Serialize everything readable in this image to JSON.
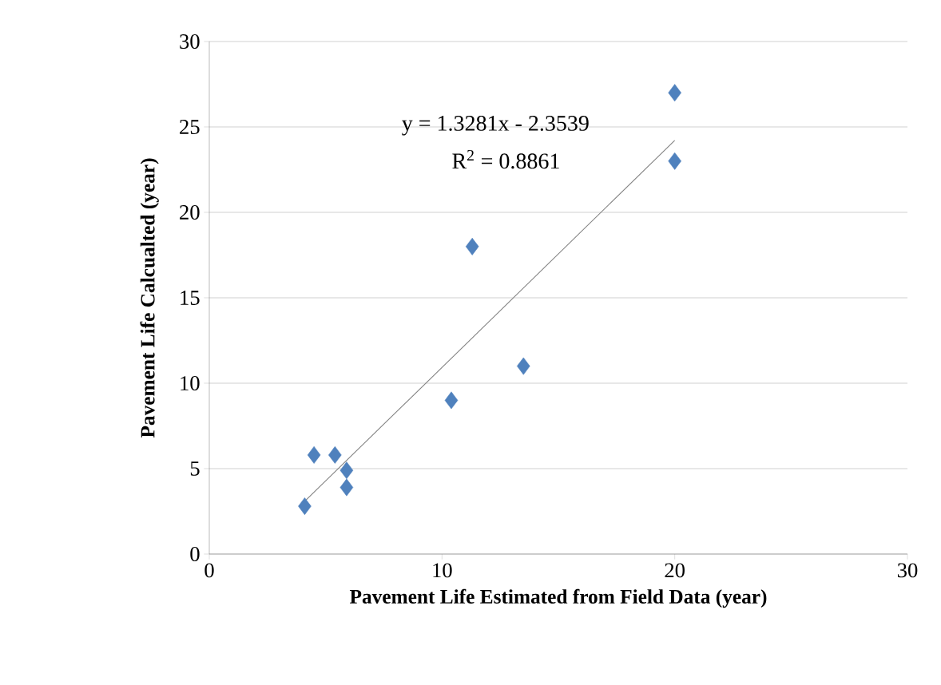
{
  "chart_data": {
    "type": "scatter",
    "xlabel": "Pavement Life Estimated from Field Data (year)",
    "ylabel": "Pavement Life Calcualted (year)",
    "annotations": [
      "y = 1.3281x - 2.3539",
      "R$^{2}$ = 0.8861"
    ],
    "series": [
      {
        "marker": "diamond",
        "color": "#4f81bd",
        "x": [
          4.1,
          4.5,
          5.4,
          5.9,
          5.9,
          10.4,
          11.3,
          13.5,
          20,
          20
        ],
        "values": [
          2.8,
          5.8,
          5.8,
          4.9,
          3.9,
          9,
          18,
          11,
          23,
          27
        ]
      },
      {
        "type": "line",
        "marker": "none",
        "color": "#808080",
        "x": [
          4.1,
          20
        ],
        "values": [
          3.09,
          24.21
        ]
      }
    ],
    "xlim": [
      0,
      30
    ],
    "xticks": [
      0,
      10,
      20,
      30
    ],
    "ylim": [
      0,
      30
    ],
    "yticks": [
      0,
      5,
      10,
      15,
      20,
      25,
      30
    ],
    "grid": "y"
  }
}
